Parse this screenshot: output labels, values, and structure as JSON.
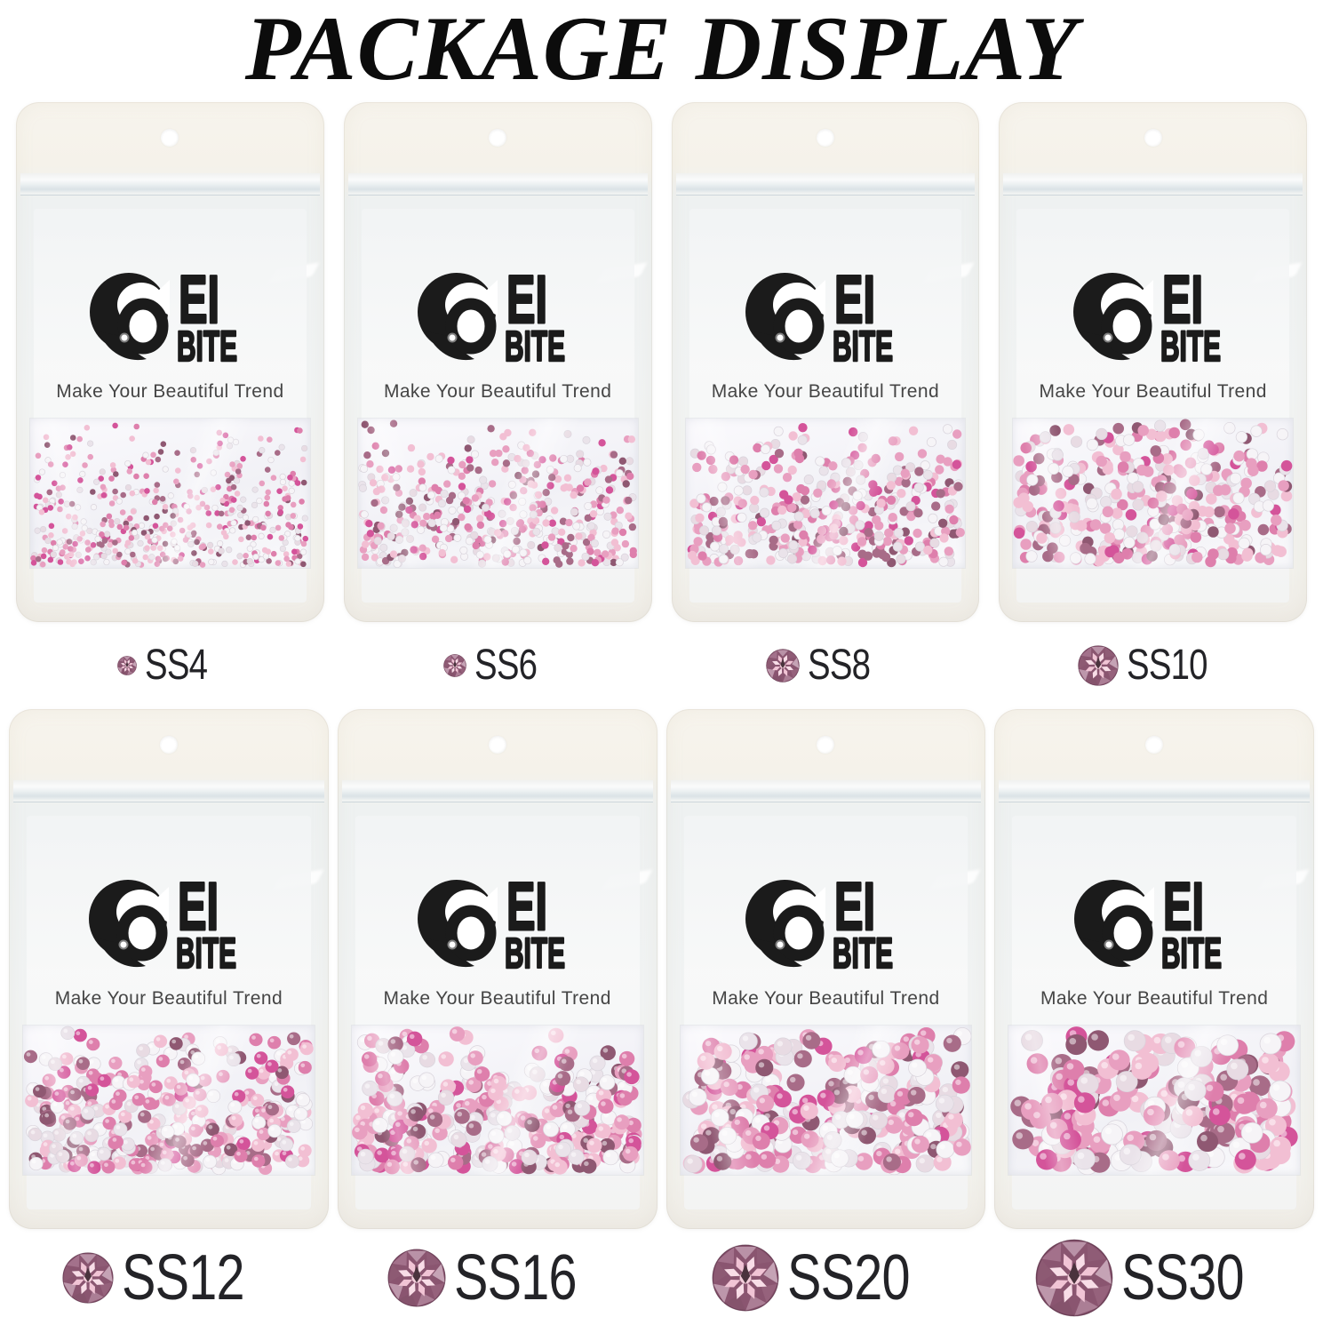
{
  "title": "PACKAGE DISPLAY",
  "brand": {
    "logo_text_line1": "EI",
    "logo_text_line2": "BITE",
    "tagline": "Make Your Beautiful Trend"
  },
  "packages": [
    {
      "size_label": "SS4"
    },
    {
      "size_label": "SS6"
    },
    {
      "size_label": "SS8"
    },
    {
      "size_label": "SS10"
    },
    {
      "size_label": "SS12"
    },
    {
      "size_label": "SS16"
    },
    {
      "size_label": "SS20"
    },
    {
      "size_label": "SS30"
    }
  ],
  "icons": {
    "logo": "swirl-o-icon",
    "size_marker": "rhinestone-gem-icon"
  },
  "colors": {
    "background": "#ffffff",
    "title_text": "#0c0c0c",
    "logo_black": "#1b1b1b",
    "tagline_text": "#454545",
    "label_text": "#232327",
    "bag_cream": "#f6f3ec",
    "bag_below_zip": "#eff1f1",
    "zip_shadow": "#ccd6db",
    "window_bg": "#faf9fd",
    "gem_rim_dark": "#8a5570",
    "gem_petal": "#f1c4d5",
    "gem_center": "#4a333d",
    "stone_palette": [
      {
        "color": "#f6f4f7",
        "weight": 3,
        "light": true
      },
      {
        "color": "#eae3ea",
        "weight": 2,
        "light": true
      },
      {
        "color": "#f2bfd3",
        "weight": 3,
        "light": false
      },
      {
        "color": "#e89fc0",
        "weight": 3,
        "light": false
      },
      {
        "color": "#de7fac",
        "weight": 2,
        "light": false
      },
      {
        "color": "#d4549a",
        "weight": 1.6,
        "light": false
      },
      {
        "color": "#a86c88",
        "weight": 1.6,
        "light": false
      },
      {
        "color": "#8f5872",
        "weight": 1,
        "light": false
      },
      {
        "color": "#e8dbe3",
        "weight": 1.6,
        "light": true
      }
    ]
  }
}
